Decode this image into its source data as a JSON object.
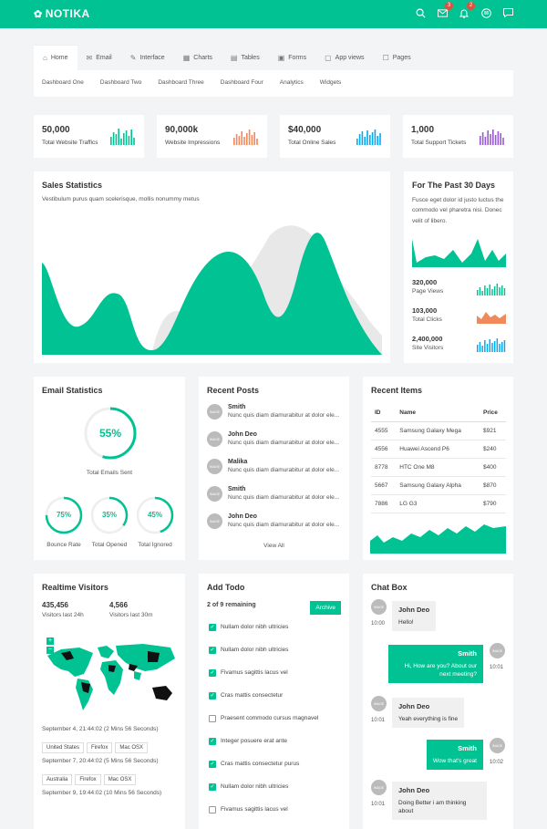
{
  "app": {
    "logo": "NOTIKA",
    "mail_badge": "3",
    "bell_badge": "2"
  },
  "nav": {
    "tabs": [
      "Home",
      "Email",
      "Interface",
      "Charts",
      "Tables",
      "Forms",
      "App views",
      "Pages"
    ],
    "subtabs": [
      "Dashboard One",
      "Dashboard Two",
      "Dashboard Three",
      "Dashboard Four",
      "Analytics",
      "Widgets"
    ]
  },
  "stats": [
    {
      "value": "50,000",
      "label": "Total Website Traffics",
      "color": "#00c292"
    },
    {
      "value": "90,000k",
      "label": "Website Impressions",
      "color": "#f08a5d"
    },
    {
      "value": "$40,000",
      "label": "Total Online Sales",
      "color": "#03a9f3"
    },
    {
      "value": "1,000",
      "label": "Total Support Tickets",
      "color": "#9b59d6"
    }
  ],
  "sales": {
    "title": "Sales Statistics",
    "subtitle": "Vestibulum purus quam scelerisque, mollis nonummy metus"
  },
  "past30": {
    "title": "For The Past 30 Days",
    "text": "Fusce eget dolor id justo luctus the commodo vel pharetra nisi. Donec velit of libero.",
    "items": [
      {
        "value": "320,000",
        "label": "Page Views",
        "color": "#00c292"
      },
      {
        "value": "103,000",
        "label": "Total Clicks",
        "color": "#f08a5d"
      },
      {
        "value": "2,400,000",
        "label": "Site Visitors",
        "color": "#03a9f3"
      }
    ]
  },
  "email": {
    "title": "Email Statistics",
    "main_value": "55%",
    "main_label": "Total Emails Sent",
    "small": [
      {
        "value": "75%",
        "label": "Bounce Rate"
      },
      {
        "value": "35%",
        "label": "Total Opened"
      },
      {
        "value": "45%",
        "label": "Total Ignored"
      }
    ]
  },
  "posts": {
    "title": "Recent Posts",
    "view_all": "View All",
    "items": [
      {
        "name": "Smith",
        "text": "Nunc quis diam diamurabitur at dolor ele..."
      },
      {
        "name": "John Deo",
        "text": "Nunc quis diam diamurabitur at dolor ele..."
      },
      {
        "name": "Malika",
        "text": "Nunc quis diam diamurabitur at dolor ele..."
      },
      {
        "name": "Smith",
        "text": "Nunc quis diam diamurabitur at dolor ele..."
      },
      {
        "name": "John Deo",
        "text": "Nunc quis diam diamurabitur at dolor ele..."
      }
    ],
    "avatar_text": "IMAGE"
  },
  "items": {
    "title": "Recent Items",
    "headers": [
      "ID",
      "Name",
      "Price"
    ],
    "rows": [
      [
        "4555",
        "Samsung Galaxy Mega",
        "$921"
      ],
      [
        "4556",
        "Huawei Ascend P6",
        "$240"
      ],
      [
        "8778",
        "HTC One M8",
        "$400"
      ],
      [
        "5667",
        "Samsung Galaxy Alpha",
        "$870"
      ],
      [
        "7886",
        "LG G3",
        "$790"
      ]
    ]
  },
  "visitors": {
    "title": "Realtime Visitors",
    "a_value": "435,456",
    "a_label": "Visitors last 24h",
    "b_value": "4,566",
    "b_label": "Visitors last 30m",
    "entries": [
      {
        "time": "September 4, 21:44:02 (2 Mins 56 Seconds)",
        "pills": [
          "United States",
          "Firefox",
          "Mac OSX"
        ]
      },
      {
        "time": "September 7, 20:44:02 (5 Mins 56 Seconds)",
        "pills": [
          "Australia",
          "Firefox",
          "Mac OSX"
        ]
      },
      {
        "time": "September 9, 19:44:02 (10 Mins 56 Seconds)",
        "pills": []
      }
    ]
  },
  "todo": {
    "title": "Add Todo",
    "remaining": "2 of 9 remaining",
    "archive": "Archive",
    "items": [
      {
        "text": "Nullam dolor nibh ultricies",
        "done": true
      },
      {
        "text": "Nullam dolor nibh ultricies",
        "done": true
      },
      {
        "text": "Fivamus sagittis lacus vel",
        "done": true
      },
      {
        "text": "Cras mattis consectetur",
        "done": true
      },
      {
        "text": "Praesent commodo cursus magnavel",
        "done": false
      },
      {
        "text": "Integer posuere erat ante",
        "done": true
      },
      {
        "text": "Cras mattis consectetur purus",
        "done": true
      },
      {
        "text": "Nullam dolor nibh ultricies",
        "done": true
      },
      {
        "text": "Fivamus sagittis lacus vel",
        "done": false
      }
    ]
  },
  "chat": {
    "title": "Chat Box",
    "messages": [
      {
        "name": "John Deo",
        "text": "Hello!",
        "time": "10:00",
        "side": "left"
      },
      {
        "name": "Smith",
        "text": "Hi, How are you? About our next meeting?",
        "time": "10:01",
        "side": "right"
      },
      {
        "name": "John Deo",
        "text": "Yeah everything is fine",
        "time": "10:01",
        "side": "left"
      },
      {
        "name": "Smith",
        "text": "Wow that's great",
        "time": "10:02",
        "side": "right"
      },
      {
        "name": "John Deo",
        "text": "Doing Better i am thinking about",
        "time": "10:01",
        "side": "left"
      }
    ]
  }
}
